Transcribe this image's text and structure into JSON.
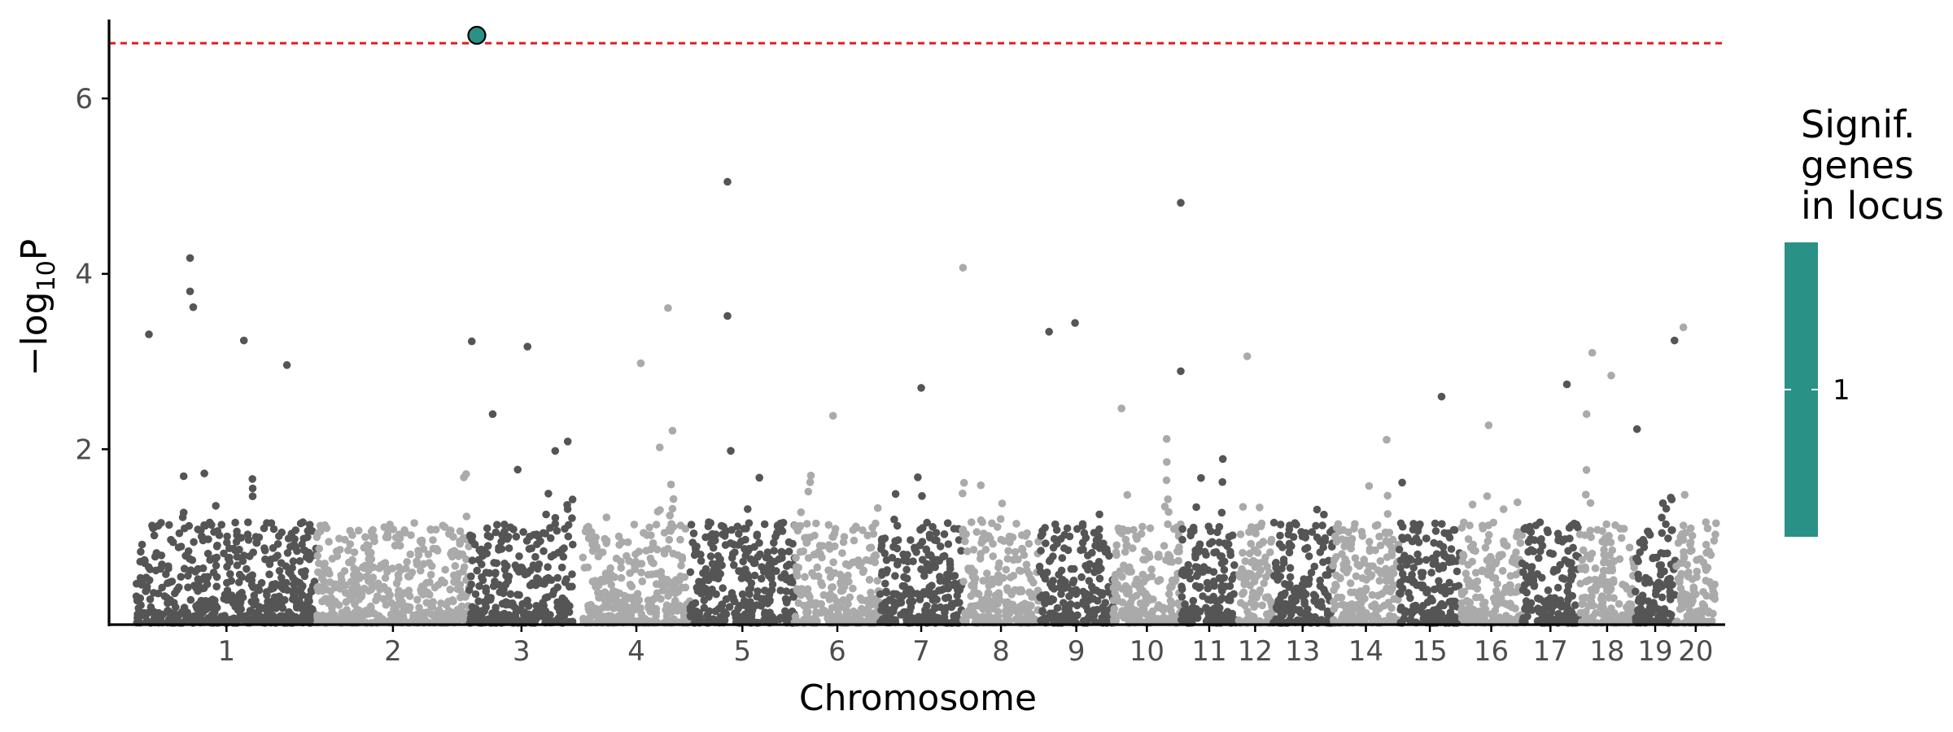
{
  "chart_data": {
    "type": "scatter",
    "subtype": "manhattan",
    "title": "",
    "xlabel": "Chromosome",
    "ylabel": "−log10P",
    "ylabel_parts": {
      "prefix": "−log",
      "subscript": "10",
      "suffix": "P"
    },
    "ylim": [
      0,
      6.9
    ],
    "yticks": [
      2,
      4,
      6
    ],
    "grid": false,
    "significance_threshold": 6.63,
    "threshold_color": "#e41a1c",
    "colors": {
      "dark": "#555555",
      "light": "#aaaaaa",
      "highlight": "#2a9187",
      "axis": "#000000",
      "tick_label": "#4d4d4d"
    },
    "chromosomes": [
      {
        "label": "1",
        "start": 0,
        "end": 2850
      },
      {
        "label": "2",
        "start": 2850,
        "end": 5260
      },
      {
        "label": "3",
        "start": 5260,
        "end": 6910
      },
      {
        "label": "4",
        "start": 7050,
        "end": 8750
      },
      {
        "label": "5",
        "start": 8750,
        "end": 10400
      },
      {
        "label": "6",
        "start": 10400,
        "end": 11750
      },
      {
        "label": "7",
        "start": 11750,
        "end": 13050
      },
      {
        "label": "8",
        "start": 13050,
        "end": 14270
      },
      {
        "label": "9",
        "start": 14270,
        "end": 15430
      },
      {
        "label": "10",
        "start": 15430,
        "end": 16500
      },
      {
        "label": "11",
        "start": 16500,
        "end": 17400
      },
      {
        "label": "12",
        "start": 17400,
        "end": 17950
      },
      {
        "label": "13",
        "start": 17950,
        "end": 18900
      },
      {
        "label": "14",
        "start": 18900,
        "end": 19950
      },
      {
        "label": "15",
        "start": 19950,
        "end": 20920
      },
      {
        "label": "16",
        "start": 20920,
        "end": 21890
      },
      {
        "label": "17",
        "start": 21890,
        "end": 22790
      },
      {
        "label": "18",
        "start": 22790,
        "end": 23680
      },
      {
        "label": "19",
        "start": 23680,
        "end": 24310
      },
      {
        "label": "20",
        "start": 24310,
        "end": 24960
      }
    ],
    "xlim": [
      -430,
      25100
    ],
    "top_points": [
      {
        "x": 850,
        "y": 4.18
      },
      {
        "x": 850,
        "y": 3.8
      },
      {
        "x": 900,
        "y": 3.62
      },
      {
        "x": 200,
        "y": 3.31
      },
      {
        "x": 1700,
        "y": 3.24
      },
      {
        "x": 2380,
        "y": 2.96
      },
      {
        "x": 5300,
        "y": 3.23
      },
      {
        "x": 6180,
        "y": 3.17
      },
      {
        "x": 5630,
        "y": 2.4
      },
      {
        "x": 8400,
        "y": 3.61
      },
      {
        "x": 7970,
        "y": 2.98
      },
      {
        "x": 9340,
        "y": 5.05
      },
      {
        "x": 9340,
        "y": 3.52
      },
      {
        "x": 13060,
        "y": 4.07
      },
      {
        "x": 12400,
        "y": 2.7
      },
      {
        "x": 14420,
        "y": 3.34
      },
      {
        "x": 14830,
        "y": 3.44
      },
      {
        "x": 16500,
        "y": 4.81
      },
      {
        "x": 16500,
        "y": 2.89
      },
      {
        "x": 17550,
        "y": 3.06
      },
      {
        "x": 23000,
        "y": 3.1
      },
      {
        "x": 24440,
        "y": 3.39
      },
      {
        "x": 24300,
        "y": 3.24
      },
      {
        "x": 23300,
        "y": 2.84
      },
      {
        "x": 22600,
        "y": 2.74
      },
      {
        "x": 20620,
        "y": 2.6
      }
    ],
    "highlight_points": [
      {
        "x": 5380,
        "y": 6.72,
        "signif_genes_in_locus": 1
      }
    ],
    "legend": {
      "title_lines": [
        "Signif.",
        "genes",
        "in locus"
      ],
      "tick_label": "1",
      "color": "#2a9187",
      "position": "right"
    }
  }
}
